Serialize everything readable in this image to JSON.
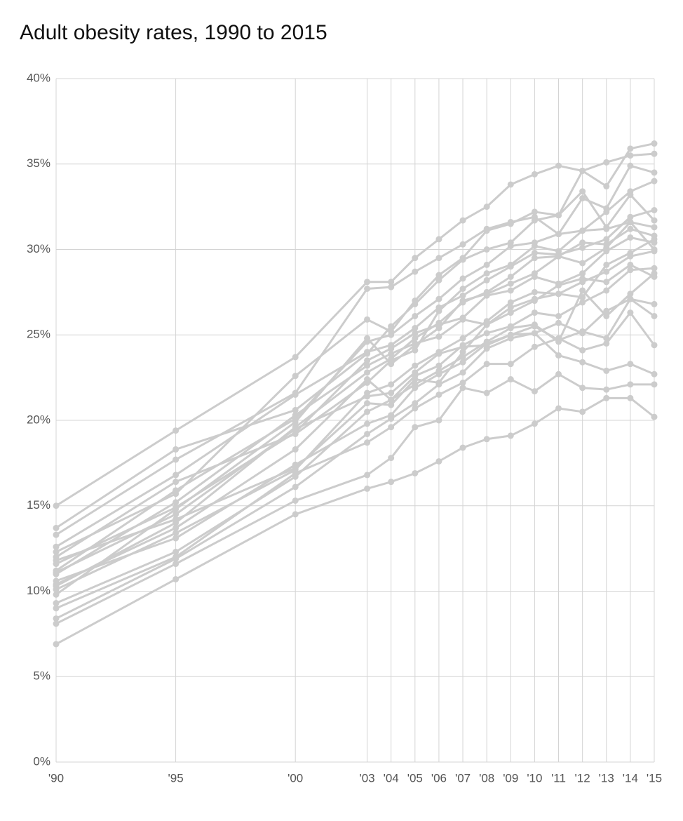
{
  "chart_data": {
    "type": "line",
    "title": "Adult obesity rates, 1990 to 2015",
    "x": [
      1990,
      1995,
      2000,
      2003,
      2004,
      2005,
      2006,
      2007,
      2008,
      2009,
      2010,
      2011,
      2012,
      2013,
      2014,
      2015
    ],
    "xlim": [
      1990,
      2015
    ],
    "xticks": [
      {
        "value": 1990,
        "label": "'90"
      },
      {
        "value": 1995,
        "label": "'95"
      },
      {
        "value": 2000,
        "label": "'00"
      },
      {
        "value": 2003,
        "label": "'03"
      },
      {
        "value": 2004,
        "label": "'04"
      },
      {
        "value": 2005,
        "label": "'05"
      },
      {
        "value": 2006,
        "label": "'06"
      },
      {
        "value": 2007,
        "label": "'07"
      },
      {
        "value": 2008,
        "label": "'08"
      },
      {
        "value": 2009,
        "label": "'09"
      },
      {
        "value": 2010,
        "label": "'10"
      },
      {
        "value": 2011,
        "label": "'11"
      },
      {
        "value": 2012,
        "label": "'12"
      },
      {
        "value": 2013,
        "label": "'13"
      },
      {
        "value": 2014,
        "label": "'14"
      },
      {
        "value": 2015,
        "label": "'15"
      }
    ],
    "ylim": [
      0,
      40
    ],
    "yticks": [
      {
        "value": 0,
        "label": "0%"
      },
      {
        "value": 5,
        "label": "5%"
      },
      {
        "value": 10,
        "label": "10%"
      },
      {
        "value": 15,
        "label": "15%"
      },
      {
        "value": 20,
        "label": "20%"
      },
      {
        "value": 25,
        "label": "25%"
      },
      {
        "value": 30,
        "label": "30%"
      },
      {
        "value": 35,
        "label": "35%"
      },
      {
        "value": 40,
        "label": "40%"
      }
    ],
    "grid": true,
    "color": "#cccccc",
    "series": [
      {
        "values": [
          15.0,
          19.4,
          23.7,
          28.1,
          28.1,
          29.5,
          30.6,
          31.7,
          32.5,
          33.8,
          34.4,
          34.9,
          34.6,
          35.1,
          35.5,
          35.6
        ]
      },
      {
        "values": [
          6.9,
          10.7,
          14.5,
          16.0,
          16.4,
          16.9,
          17.6,
          18.4,
          18.9,
          19.1,
          19.8,
          20.7,
          20.5,
          21.3,
          21.3,
          20.2
        ]
      },
      {
        "values": [
          12.3,
          15.7,
          22.6,
          25.9,
          25.2,
          27.0,
          28.5,
          29.5,
          31.1,
          31.5,
          32.2,
          32.0,
          34.6,
          33.7,
          35.9,
          36.2
        ]
      },
      {
        "values": [
          13.3,
          17.7,
          21.6,
          27.7,
          27.8,
          28.7,
          29.5,
          30.3,
          31.2,
          31.6,
          31.9,
          30.9,
          33.0,
          32.4,
          34.9,
          34.5
        ]
      },
      {
        "values": [
          11.2,
          15.9,
          20.1,
          24.6,
          25.0,
          26.1,
          27.1,
          28.3,
          29.1,
          30.2,
          30.4,
          30.9,
          31.1,
          32.2,
          33.4,
          34.0
        ]
      },
      {
        "values": [
          10.3,
          14.0,
          19.6,
          22.8,
          23.6,
          24.8,
          25.7,
          26.9,
          27.5,
          28.4,
          29.5,
          29.6,
          29.2,
          30.1,
          31.6,
          31.3
        ]
      },
      {
        "values": [
          11.6,
          14.9,
          19.3,
          23.5,
          24.2,
          25.1,
          25.6,
          26.0,
          27.3,
          27.6,
          28.4,
          28.0,
          28.6,
          29.9,
          30.7,
          30.4
        ]
      },
      {
        "values": [
          10.1,
          13.4,
          17.1,
          21.6,
          22.1,
          23.2,
          24.0,
          24.8,
          25.8,
          26.9,
          27.5,
          27.4,
          28.1,
          28.7,
          29.6,
          29.9
        ]
      },
      {
        "values": [
          9.3,
          12.3,
          16.7,
          20.5,
          21.2,
          22.6,
          23.2,
          24.4,
          25.1,
          25.5,
          26.3,
          26.1,
          26.9,
          27.6,
          28.8,
          28.9
        ]
      },
      {
        "values": [
          8.4,
          11.9,
          16.1,
          19.2,
          20.1,
          21.0,
          22.1,
          22.8,
          24.2,
          24.8,
          25.1,
          25.7,
          25.1,
          26.4,
          27.1,
          26.8
        ]
      },
      {
        "values": [
          10.6,
          13.1,
          17.4,
          19.8,
          20.3,
          21.9,
          22.7,
          23.4,
          24.5,
          25.0,
          25.5,
          24.7,
          25.2,
          24.8,
          27.1,
          26.1
        ]
      },
      {
        "values": [
          9.0,
          12.0,
          16.9,
          18.7,
          19.6,
          20.7,
          21.5,
          22.2,
          23.3,
          23.3,
          24.3,
          24.8,
          24.1,
          24.5,
          26.3,
          24.4
        ]
      },
      {
        "values": [
          11.1,
          14.5,
          19.5,
          21.4,
          21.6,
          22.8,
          23.9,
          24.3,
          24.4,
          25.0,
          25.1,
          23.8,
          23.4,
          22.9,
          23.3,
          22.7
        ]
      },
      {
        "values": [
          8.1,
          11.6,
          15.3,
          16.8,
          17.8,
          19.6,
          20.0,
          21.9,
          21.6,
          22.4,
          21.7,
          22.7,
          21.9,
          21.8,
          22.1,
          22.1
        ]
      },
      {
        "values": [
          12.6,
          16.8,
          21.5,
          24.0,
          24.4,
          25.4,
          26.6,
          27.3,
          28.2,
          29.0,
          29.8,
          29.7,
          30.1,
          30.6,
          31.9,
          32.3
        ]
      },
      {
        "values": [
          13.7,
          18.3,
          20.6,
          23.9,
          25.5,
          26.8,
          28.2,
          29.4,
          30.0,
          30.4,
          31.7,
          32.0,
          33.4,
          31.3,
          33.2,
          31.7
        ]
      },
      {
        "values": [
          11.0,
          15.2,
          20.3,
          23.2,
          23.9,
          24.5,
          24.9,
          25.9,
          25.6,
          26.6,
          27.1,
          27.4,
          27.2,
          29.1,
          29.8,
          30.6
        ]
      },
      {
        "values": [
          10.4,
          13.7,
          18.3,
          22.4,
          21.2,
          22.1,
          22.9,
          23.7,
          24.6,
          25.4,
          25.6,
          24.6,
          27.6,
          26.1,
          27.4,
          28.6
        ]
      },
      {
        "values": [
          9.8,
          14.8,
          19.9,
          24.8,
          23.3,
          24.4,
          25.4,
          27.0,
          27.4,
          28.0,
          28.6,
          29.6,
          30.4,
          30.3,
          31.2,
          30.8
        ]
      },
      {
        "values": [
          12.0,
          16.4,
          19.2,
          22.2,
          23.5,
          24.1,
          26.4,
          27.7,
          28.6,
          29.1,
          30.2,
          29.9,
          31.1,
          31.2,
          31.6,
          30.0
        ]
      },
      {
        "values": [
          11.8,
          14.2,
          17.2,
          21.0,
          20.9,
          22.4,
          22.2,
          24.0,
          25.6,
          26.3,
          27.0,
          27.9,
          28.3,
          28.1,
          29.1,
          28.4
        ]
      }
    ]
  }
}
